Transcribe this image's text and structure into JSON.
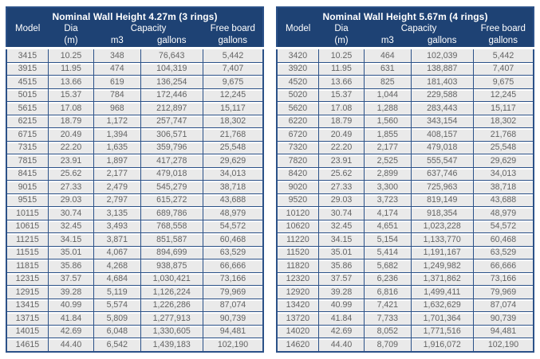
{
  "colors": {
    "header_bg": "#1E4274",
    "header_text": "#FFFFFF",
    "grid_border": "#2B5188",
    "row_bg": "#EAEAEA",
    "row_separator": "#FFFFFF",
    "body_text": "#646464",
    "page_bg": "#FFFFFF"
  },
  "tables": [
    {
      "title": "Nominal Wall Height 4.27m (3 rings)",
      "headers": {
        "model": "Model",
        "dia": "Dia",
        "dia_unit": "(m)",
        "capacity": "Capacity",
        "capacity_m3": "m3",
        "capacity_gallons": "gallons",
        "freeboard": "Free board",
        "freeboard_unit": "gallons"
      },
      "rows": [
        [
          "3415",
          "10.25",
          "348",
          "76,643",
          "5,442"
        ],
        [
          "3915",
          "11.95",
          "474",
          "104,319",
          "7,407"
        ],
        [
          "4515",
          "13.66",
          "619",
          "136,254",
          "9,675"
        ],
        [
          "5015",
          "15.37",
          "784",
          "172,446",
          "12,245"
        ],
        [
          "5615",
          "17.08",
          "968",
          "212,897",
          "15,117"
        ],
        [
          "6215",
          "18.79",
          "1,172",
          "257,747",
          "18,302"
        ],
        [
          "6715",
          "20.49",
          "1,394",
          "306,571",
          "21,768"
        ],
        [
          "7315",
          "22.20",
          "1,635",
          "359,796",
          "25,548"
        ],
        [
          "7815",
          "23.91",
          "1,897",
          "417,278",
          "29,629"
        ],
        [
          "8415",
          "25.62",
          "2,177",
          "479,018",
          "34,013"
        ],
        [
          "9015",
          "27.33",
          "2,479",
          "545,279",
          "38,718"
        ],
        [
          "9515",
          "29.03",
          "2,797",
          "615,272",
          "43,688"
        ],
        [
          "10115",
          "30.74",
          "3,135",
          "689,786",
          "48,979"
        ],
        [
          "10615",
          "32.45",
          "3,493",
          "768,558",
          "54,572"
        ],
        [
          "11215",
          "34.15",
          "3,871",
          "851,587",
          "60,468"
        ],
        [
          "11515",
          "35.01",
          "4,067",
          "894,699",
          "63,529"
        ],
        [
          "11815",
          "35.86",
          "4,268",
          "938,875",
          "66,666"
        ],
        [
          "12315",
          "37.57",
          "4,684",
          "1,030,421",
          "73,166"
        ],
        [
          "12915",
          "39.28",
          "5,119",
          "1,126,224",
          "79,969"
        ],
        [
          "13415",
          "40.99",
          "5,574",
          "1,226,286",
          "87,074"
        ],
        [
          "13715",
          "41.84",
          "5,809",
          "1,277,913",
          "90,739"
        ],
        [
          "14015",
          "42.69",
          "6,048",
          "1,330,605",
          "94,481"
        ],
        [
          "14615",
          "44.40",
          "6,542",
          "1,439,183",
          "102,190"
        ]
      ]
    },
    {
      "title": "Nominal Wall Height 5.67m (4 rings)",
      "headers": {
        "model": "Model",
        "dia": "Dia",
        "dia_unit": "(m)",
        "capacity": "Capacity",
        "capacity_m3": "m3",
        "capacity_gallons": "gallons",
        "freeboard": "Free board",
        "freeboard_unit": "gallons"
      },
      "rows": [
        [
          "3420",
          "10.25",
          "464",
          "102,039",
          "5,442"
        ],
        [
          "3920",
          "11.95",
          "631",
          "138,887",
          "7,407"
        ],
        [
          "4520",
          "13.66",
          "825",
          "181,403",
          "9,675"
        ],
        [
          "5020",
          "15.37",
          "1,044",
          "229,588",
          "12,245"
        ],
        [
          "5620",
          "17.08",
          "1,288",
          "283,443",
          "15,117"
        ],
        [
          "6220",
          "18.79",
          "1,560",
          "343,154",
          "18,302"
        ],
        [
          "6720",
          "20.49",
          "1,855",
          "408,157",
          "21,768"
        ],
        [
          "7320",
          "22.20",
          "2,177",
          "479,018",
          "25,548"
        ],
        [
          "7820",
          "23.91",
          "2,525",
          "555,547",
          "29,629"
        ],
        [
          "8420",
          "25.62",
          "2,899",
          "637,746",
          "34,013"
        ],
        [
          "9020",
          "27.33",
          "3,300",
          "725,963",
          "38,718"
        ],
        [
          "9520",
          "29.03",
          "3,723",
          "819,149",
          "43,688"
        ],
        [
          "10120",
          "30.74",
          "4,174",
          "918,354",
          "48,979"
        ],
        [
          "10620",
          "32.45",
          "4,651",
          "1,023,228",
          "54,572"
        ],
        [
          "11220",
          "34.15",
          "5,154",
          "1,133,770",
          "60,468"
        ],
        [
          "11520",
          "35.01",
          "5,414",
          "1,191,167",
          "63,529"
        ],
        [
          "11820",
          "35.86",
          "5,682",
          "1,249,982",
          "66,666"
        ],
        [
          "12320",
          "37.57",
          "6,236",
          "1,371,862",
          "73,166"
        ],
        [
          "12920",
          "39.28",
          "6,816",
          "1,499,411",
          "79,969"
        ],
        [
          "13420",
          "40.99",
          "7,421",
          "1,632,629",
          "87,074"
        ],
        [
          "13720",
          "41.84",
          "7,733",
          "1,701,364",
          "90,739"
        ],
        [
          "14020",
          "42.69",
          "8,052",
          "1,771,516",
          "94,481"
        ],
        [
          "14620",
          "44.40",
          "8,709",
          "1,916,072",
          "102,190"
        ]
      ]
    }
  ]
}
